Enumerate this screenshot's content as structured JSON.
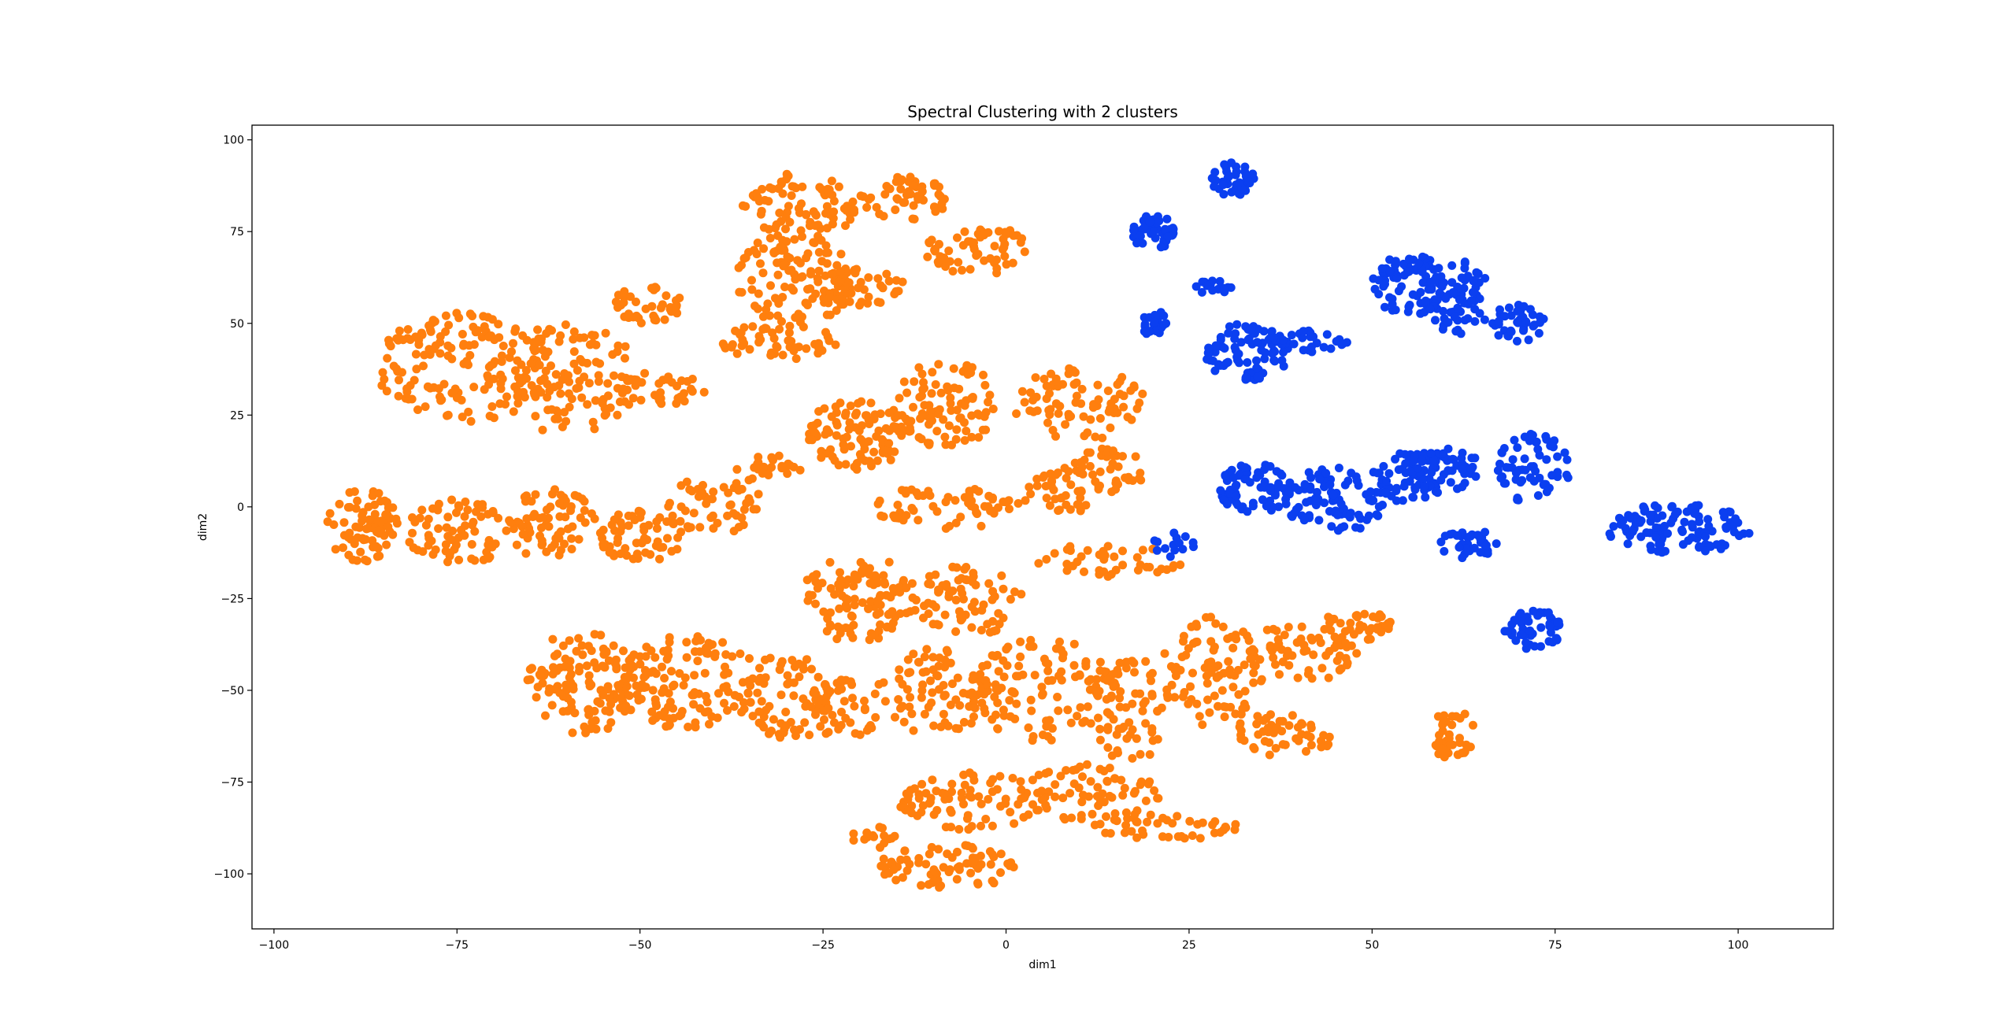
{
  "chart_data": {
    "type": "scatter",
    "title": "Spectral Clustering with 2 clusters",
    "xlabel": "dim1",
    "ylabel": "dim2",
    "xlim": [
      -103,
      113
    ],
    "ylim": [
      -115,
      104
    ],
    "xticks": [
      -100,
      -75,
      -50,
      -25,
      0,
      25,
      50,
      75,
      100
    ],
    "yticks": [
      -100,
      -75,
      -50,
      -25,
      0,
      25,
      50,
      75,
      100
    ],
    "grid": false,
    "legend": "none",
    "series": [
      {
        "color": "#ff7f0e",
        "clusters": [
          {
            "cx": -74,
            "cy": 38,
            "rx": 12,
            "ry": 15,
            "n": 150
          },
          {
            "cx": -60,
            "cy": 35,
            "rx": 10,
            "ry": 15,
            "n": 110
          },
          {
            "cx": -48,
            "cy": 32,
            "rx": 7,
            "ry": 5,
            "n": 40
          },
          {
            "cx": -49,
            "cy": 55,
            "rx": 5,
            "ry": 5,
            "n": 40
          },
          {
            "cx": -28,
            "cy": 82,
            "rx": 8,
            "ry": 9,
            "n": 80
          },
          {
            "cx": -14,
            "cy": 84,
            "rx": 6,
            "ry": 6,
            "n": 50
          },
          {
            "cx": -29,
            "cy": 62,
            "rx": 8,
            "ry": 13,
            "n": 110
          },
          {
            "cx": -4,
            "cy": 70,
            "rx": 7,
            "ry": 7,
            "n": 60
          },
          {
            "cx": -31,
            "cy": 45,
            "rx": 8,
            "ry": 5,
            "n": 50
          },
          {
            "cx": -20,
            "cy": 60,
            "rx": 6,
            "ry": 6,
            "n": 45
          },
          {
            "cx": -20,
            "cy": 20,
            "rx": 7,
            "ry": 10,
            "n": 100
          },
          {
            "cx": -8,
            "cy": 28,
            "rx": 7,
            "ry": 12,
            "n": 90
          },
          {
            "cx": 10,
            "cy": 28,
            "rx": 9,
            "ry": 10,
            "n": 80
          },
          {
            "cx": -8,
            "cy": 0,
            "rx": 10,
            "ry": 6,
            "n": 60
          },
          {
            "cx": 7,
            "cy": 4,
            "rx": 5,
            "ry": 7,
            "n": 40
          },
          {
            "cx": 14,
            "cy": 10,
            "rx": 5,
            "ry": 6,
            "n": 40
          },
          {
            "cx": 14,
            "cy": -15,
            "rx": 10,
            "ry": 5,
            "n": 40
          },
          {
            "cx": -88,
            "cy": -5,
            "rx": 5,
            "ry": 10,
            "n": 80
          },
          {
            "cx": -75,
            "cy": -7,
            "rx": 7,
            "ry": 9,
            "n": 70
          },
          {
            "cx": -62,
            "cy": -5,
            "rx": 6,
            "ry": 10,
            "n": 70
          },
          {
            "cx": -50,
            "cy": -8,
            "rx": 6,
            "ry": 7,
            "n": 60
          },
          {
            "cx": -40,
            "cy": 0,
            "rx": 7,
            "ry": 8,
            "n": 50
          },
          {
            "cx": -32,
            "cy": 10,
            "rx": 5,
            "ry": 4,
            "n": 25
          },
          {
            "cx": -20,
            "cy": -25,
            "rx": 8,
            "ry": 12,
            "n": 110
          },
          {
            "cx": -5,
            "cy": -25,
            "rx": 8,
            "ry": 10,
            "n": 70
          },
          {
            "cx": -58,
            "cy": -48,
            "rx": 8,
            "ry": 14,
            "n": 120
          },
          {
            "cx": -43,
            "cy": -48,
            "rx": 10,
            "ry": 13,
            "n": 130
          },
          {
            "cx": -30,
            "cy": -52,
            "rx": 6,
            "ry": 12,
            "n": 70
          },
          {
            "cx": -22,
            "cy": -55,
            "rx": 5,
            "ry": 8,
            "n": 40
          },
          {
            "cx": -10,
            "cy": -50,
            "rx": 8,
            "ry": 12,
            "n": 80
          },
          {
            "cx": 5,
            "cy": -50,
            "rx": 10,
            "ry": 14,
            "n": 120
          },
          {
            "cx": 17,
            "cy": -55,
            "rx": 5,
            "ry": 15,
            "n": 60
          },
          {
            "cx": 28,
            "cy": -45,
            "rx": 7,
            "ry": 15,
            "n": 90
          },
          {
            "cx": 40,
            "cy": -40,
            "rx": 8,
            "ry": 8,
            "n": 60
          },
          {
            "cx": 48,
            "cy": -33,
            "rx": 5,
            "ry": 5,
            "n": 40
          },
          {
            "cx": 38,
            "cy": -62,
            "rx": 7,
            "ry": 6,
            "n": 50
          },
          {
            "cx": -5,
            "cy": -80,
            "rx": 10,
            "ry": 8,
            "n": 80
          },
          {
            "cx": 12,
            "cy": -78,
            "rx": 10,
            "ry": 8,
            "n": 70
          },
          {
            "cx": 22,
            "cy": -87,
            "rx": 10,
            "ry": 4,
            "n": 40
          },
          {
            "cx": -8,
            "cy": -98,
            "rx": 10,
            "ry": 6,
            "n": 80
          },
          {
            "cx": -18,
            "cy": -90,
            "rx": 3,
            "ry": 3,
            "n": 15
          },
          {
            "cx": 61,
            "cy": -62,
            "rx": 3,
            "ry": 7,
            "n": 40
          }
        ]
      },
      {
        "color": "#0b3ff0",
        "clusters": [
          {
            "cx": 31,
            "cy": 89,
            "rx": 3,
            "ry": 5,
            "n": 40
          },
          {
            "cx": 20,
            "cy": 75,
            "rx": 3,
            "ry": 5,
            "n": 50
          },
          {
            "cx": 28,
            "cy": 60,
            "rx": 3,
            "ry": 2,
            "n": 15
          },
          {
            "cx": 20,
            "cy": 50,
            "rx": 2,
            "ry": 4,
            "n": 25
          },
          {
            "cx": 33,
            "cy": 42,
            "rx": 6,
            "ry": 8,
            "n": 90
          },
          {
            "cx": 41,
            "cy": 45,
            "rx": 6,
            "ry": 3,
            "n": 30
          },
          {
            "cx": 55,
            "cy": 60,
            "rx": 5,
            "ry": 9,
            "n": 80
          },
          {
            "cx": 62,
            "cy": 57,
            "rx": 5,
            "ry": 10,
            "n": 70
          },
          {
            "cx": 70,
            "cy": 50,
            "rx": 4,
            "ry": 5,
            "n": 40
          },
          {
            "cx": 34,
            "cy": 5,
            "rx": 5,
            "ry": 7,
            "n": 70
          },
          {
            "cx": 45,
            "cy": 2,
            "rx": 7,
            "ry": 9,
            "n": 90
          },
          {
            "cx": 55,
            "cy": 8,
            "rx": 5,
            "ry": 7,
            "n": 60
          },
          {
            "cx": 60,
            "cy": 10,
            "rx": 5,
            "ry": 6,
            "n": 50
          },
          {
            "cx": 63,
            "cy": -10,
            "rx": 4,
            "ry": 4,
            "n": 35
          },
          {
            "cx": 72,
            "cy": 10,
            "rx": 5,
            "ry": 10,
            "n": 60
          },
          {
            "cx": 92,
            "cy": -6,
            "rx": 10,
            "ry": 7,
            "n": 110
          },
          {
            "cx": 72,
            "cy": -33,
            "rx": 4,
            "ry": 6,
            "n": 50
          },
          {
            "cx": 23,
            "cy": -10,
            "rx": 3,
            "ry": 4,
            "n": 15
          }
        ]
      }
    ]
  }
}
